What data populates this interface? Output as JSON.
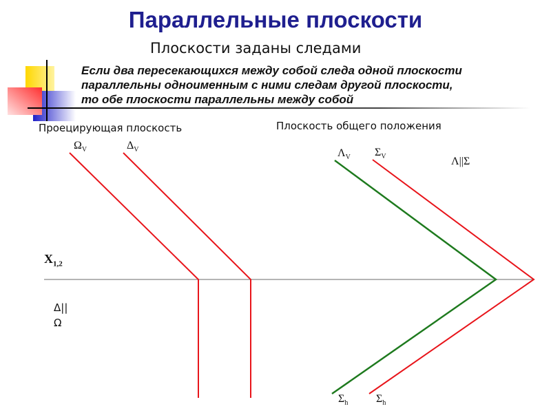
{
  "title": "Параллельные плоскости",
  "subtitle": "Плоскости заданы следами",
  "rule": [
    "Если два пересекающихся между собой следа одной плоскости",
    "параллельны одноименным с ними следам другой плоскости,",
    "то обе плоскости параллельны между собой"
  ],
  "left_caption": "Проецирующая плоскость",
  "right_caption": "Плоскость общего положения",
  "labels": {
    "omega": "Ω",
    "delta": "Δ",
    "lambda": "Λ",
    "sigma": "Σ",
    "v": "V",
    "h": "h",
    "axis_x": "X",
    "axis_sub": "1,2",
    "left_relation": [
      "Δ||",
      "Ω"
    ],
    "right_relation": "Λ||Σ"
  },
  "colors": {
    "title": "#1f1f8f",
    "red": "#e8141a",
    "green": "#1e7a1e",
    "axis": "#888888"
  }
}
